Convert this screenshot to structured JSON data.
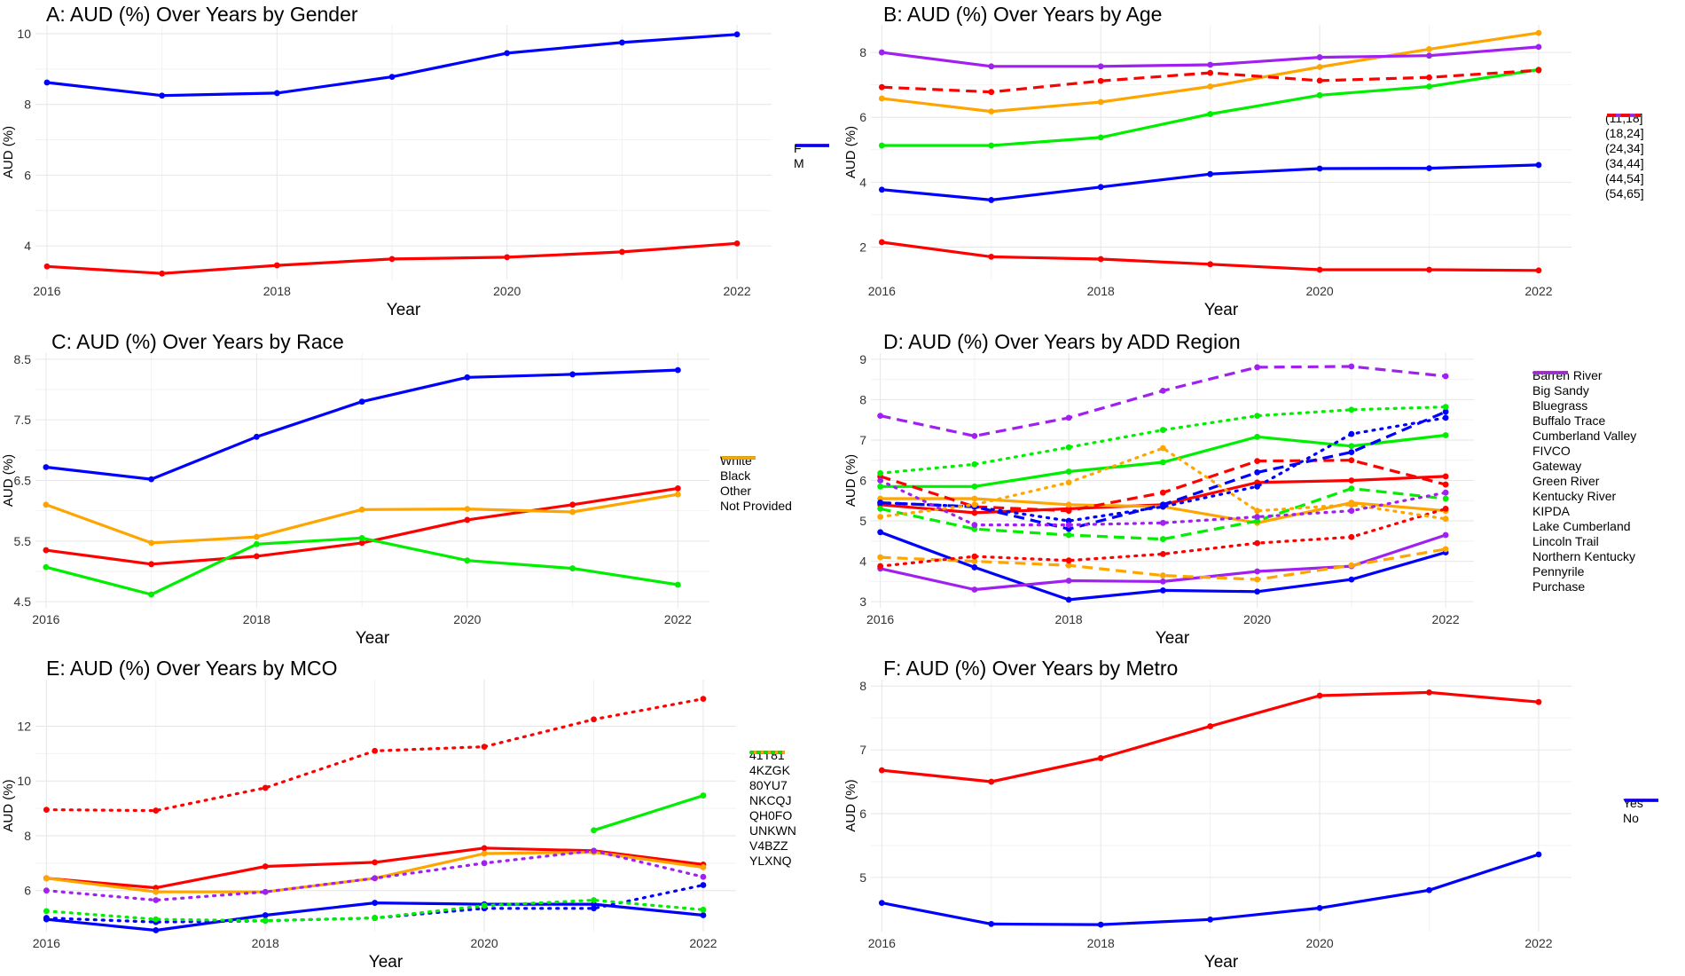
{
  "chart_data": [
    {
      "id": "A",
      "type": "line",
      "title": "A: AUD (%) Over Years by Gender",
      "xlabel": "Year",
      "ylabel": "AUD (%)",
      "xlim": [
        2015.9,
        2022.3
      ],
      "ylim": [
        3.05,
        10.25
      ],
      "xticks": [
        2016,
        2018,
        2020,
        2022
      ],
      "yticks": [
        4,
        6,
        8,
        10
      ],
      "legend_position": "right",
      "grid": true,
      "x": [
        2016,
        2017,
        2018,
        2019,
        2020,
        2021,
        2022
      ],
      "series": [
        {
          "name": "F",
          "color": "#ff0000",
          "dash": "solid",
          "values": [
            3.42,
            3.22,
            3.45,
            3.63,
            3.68,
            3.83,
            4.07
          ]
        },
        {
          "name": "M",
          "color": "#0000ff",
          "dash": "solid",
          "values": [
            8.62,
            8.25,
            8.32,
            8.78,
            9.45,
            9.75,
            9.98
          ]
        }
      ]
    },
    {
      "id": "B",
      "type": "line",
      "title": "B: AUD (%) Over Years by Age",
      "xlabel": "Year",
      "ylabel": "AUD (%)",
      "xlim": [
        2015.9,
        2022.3
      ],
      "ylim": [
        1.0,
        8.85
      ],
      "xticks": [
        2016,
        2018,
        2020,
        2022
      ],
      "yticks": [
        2,
        4,
        6,
        8
      ],
      "legend_position": "right",
      "grid": true,
      "x": [
        2016,
        2017,
        2018,
        2019,
        2020,
        2021,
        2022
      ],
      "series": [
        {
          "name": "(11,18]",
          "color": "#ff0000",
          "dash": "solid",
          "values": [
            2.15,
            1.7,
            1.63,
            1.47,
            1.3,
            1.3,
            1.28
          ]
        },
        {
          "name": "(18,24]",
          "color": "#0000ff",
          "dash": "solid",
          "values": [
            3.77,
            3.45,
            3.85,
            4.25,
            4.42,
            4.43,
            4.53
          ]
        },
        {
          "name": "(24,34]",
          "color": "#00ee00",
          "dash": "solid",
          "values": [
            5.13,
            5.13,
            5.38,
            6.1,
            6.68,
            6.95,
            7.47
          ]
        },
        {
          "name": "(34,44]",
          "color": "#ffa500",
          "dash": "solid",
          "values": [
            6.58,
            6.18,
            6.47,
            6.95,
            7.55,
            8.1,
            8.6
          ]
        },
        {
          "name": "(44,54]",
          "color": "#a020f0",
          "dash": "solid",
          "values": [
            8.0,
            7.57,
            7.57,
            7.62,
            7.85,
            7.9,
            8.17
          ]
        },
        {
          "name": "(54,65]",
          "color": "#ff0000",
          "dash": "dashed",
          "values": [
            6.93,
            6.78,
            7.12,
            7.37,
            7.13,
            7.23,
            7.45
          ]
        }
      ]
    },
    {
      "id": "C",
      "type": "line",
      "title": "C: AUD (%) Over Years by Race",
      "xlabel": "Year",
      "ylabel": "AUD (%)",
      "xlim": [
        2015.9,
        2022.3
      ],
      "ylim": [
        4.4,
        8.6
      ],
      "xticks": [
        2016,
        2018,
        2020,
        2022
      ],
      "yticks": [
        4.5,
        5.5,
        6.5,
        7.5,
        8.5
      ],
      "legend_position": "right",
      "grid": true,
      "x": [
        2016,
        2017,
        2018,
        2019,
        2020,
        2021,
        2022
      ],
      "series": [
        {
          "name": "White",
          "color": "#ff0000",
          "dash": "solid",
          "values": [
            5.35,
            5.12,
            5.25,
            5.47,
            5.85,
            6.1,
            6.37
          ]
        },
        {
          "name": "Black",
          "color": "#0000ff",
          "dash": "solid",
          "values": [
            6.72,
            6.52,
            7.22,
            7.8,
            8.2,
            8.25,
            8.32
          ]
        },
        {
          "name": "Other",
          "color": "#00ee00",
          "dash": "solid",
          "values": [
            5.07,
            4.62,
            5.45,
            5.55,
            5.18,
            5.05,
            4.78
          ]
        },
        {
          "name": "Not Provided",
          "color": "#ffa500",
          "dash": "solid",
          "values": [
            6.1,
            5.47,
            5.57,
            6.02,
            6.03,
            5.98,
            6.27
          ]
        }
      ]
    },
    {
      "id": "D",
      "type": "line",
      "title": "D: AUD (%) Over Years by ADD Region",
      "xlabel": "Year",
      "ylabel": "AUD (%)",
      "xlim": [
        2015.9,
        2022.3
      ],
      "ylim": [
        2.85,
        9.15
      ],
      "xticks": [
        2016,
        2018,
        2020,
        2022
      ],
      "yticks": [
        3,
        4,
        5,
        6,
        7,
        8,
        9
      ],
      "legend_position": "right",
      "grid": true,
      "x": [
        2016,
        2017,
        2018,
        2019,
        2020,
        2021,
        2022
      ],
      "series": [
        {
          "name": "Barren River",
          "color": "#ff0000",
          "dash": "solid",
          "values": [
            5.4,
            5.2,
            5.3,
            5.4,
            5.95,
            6.0,
            6.1
          ]
        },
        {
          "name": "Big Sandy",
          "color": "#0000ff",
          "dash": "solid",
          "values": [
            4.72,
            3.85,
            3.05,
            3.28,
            3.25,
            3.55,
            4.22
          ]
        },
        {
          "name": "Bluegrass",
          "color": "#00ee00",
          "dash": "solid",
          "values": [
            5.85,
            5.85,
            6.22,
            6.45,
            7.08,
            6.85,
            7.12
          ]
        },
        {
          "name": "Buffalo Trace",
          "color": "#ffa500",
          "dash": "solid",
          "values": [
            5.55,
            5.55,
            5.4,
            5.35,
            4.95,
            5.45,
            5.25
          ]
        },
        {
          "name": "Cumberland Valley",
          "color": "#a020f0",
          "dash": "solid",
          "values": [
            3.82,
            3.3,
            3.52,
            3.5,
            3.75,
            3.88,
            4.65
          ]
        },
        {
          "name": "FIVCO",
          "color": "#ff0000",
          "dash": "dashed",
          "values": [
            6.1,
            5.35,
            5.25,
            5.7,
            6.48,
            6.5,
            5.9
          ]
        },
        {
          "name": "Gateway",
          "color": "#0000ff",
          "dash": "dashed",
          "values": [
            5.45,
            5.35,
            4.8,
            5.4,
            6.2,
            6.7,
            7.7
          ]
        },
        {
          "name": "Green River",
          "color": "#00ee00",
          "dash": "dashed",
          "values": [
            5.3,
            4.8,
            4.65,
            4.55,
            5.0,
            5.8,
            5.55
          ]
        },
        {
          "name": "Kentucky River",
          "color": "#ffa500",
          "dash": "dashed",
          "values": [
            4.1,
            4.0,
            3.9,
            3.65,
            3.55,
            3.9,
            4.3
          ]
        },
        {
          "name": "KIPDA",
          "color": "#a020f0",
          "dash": "dashed",
          "values": [
            7.6,
            7.1,
            7.55,
            8.22,
            8.8,
            8.82,
            8.58
          ]
        },
        {
          "name": "Lake Cumberland",
          "color": "#ff0000",
          "dash": "dotted",
          "values": [
            3.88,
            4.12,
            4.02,
            4.18,
            4.45,
            4.6,
            5.3
          ]
        },
        {
          "name": "Lincoln Trail",
          "color": "#0000ff",
          "dash": "dotted",
          "values": [
            5.45,
            5.35,
            5.0,
            5.35,
            5.85,
            7.15,
            7.55
          ]
        },
        {
          "name": "Northern Kentucky",
          "color": "#00ee00",
          "dash": "dotted",
          "values": [
            6.18,
            6.4,
            6.82,
            7.25,
            7.6,
            7.75,
            7.82
          ]
        },
        {
          "name": "Pennyrile",
          "color": "#ffa500",
          "dash": "dotted",
          "values": [
            5.1,
            5.4,
            5.95,
            6.8,
            5.25,
            5.4,
            5.05
          ]
        },
        {
          "name": "Purchase",
          "color": "#a020f0",
          "dash": "dotted",
          "values": [
            6.0,
            4.9,
            4.9,
            4.95,
            5.1,
            5.25,
            5.7
          ]
        }
      ]
    },
    {
      "id": "E",
      "type": "line",
      "title": "E: AUD (%) Over Years by MCO",
      "xlabel": "Year",
      "ylabel": "AUD (%)",
      "xlim": [
        2015.9,
        2022.3
      ],
      "ylim": [
        4.5,
        13.7
      ],
      "xticks": [
        2016,
        2018,
        2020,
        2022
      ],
      "yticks": [
        6,
        8,
        10,
        12
      ],
      "legend_position": "right",
      "grid": true,
      "x": [
        2016,
        2017,
        2018,
        2019,
        2020,
        2021,
        2022
      ],
      "series": [
        {
          "name": "41T81",
          "color": "#ff0000",
          "dash": "solid",
          "values": [
            6.45,
            6.1,
            6.88,
            7.03,
            7.55,
            7.45,
            6.95
          ]
        },
        {
          "name": "4KZGK",
          "color": "#0000ff",
          "dash": "solid",
          "values": [
            4.95,
            4.55,
            5.1,
            5.55,
            5.5,
            5.5,
            5.1
          ]
        },
        {
          "name": "80YU7",
          "color": "#00ee00",
          "dash": "solid",
          "values": [
            null,
            null,
            null,
            null,
            null,
            8.2,
            9.47
          ]
        },
        {
          "name": "NKCQJ",
          "color": "#ffa500",
          "dash": "solid",
          "values": [
            6.45,
            5.95,
            5.95,
            6.45,
            7.35,
            7.4,
            6.85
          ]
        },
        {
          "name": "QH0FO",
          "color": "#a020f0",
          "dash": "dotted",
          "values": [
            6.0,
            5.65,
            5.95,
            6.45,
            7.0,
            7.45,
            6.5
          ]
        },
        {
          "name": "UNKWN",
          "color": "#ff0000",
          "dash": "dotted",
          "values": [
            8.95,
            8.92,
            9.75,
            11.1,
            11.25,
            12.25,
            13.0
          ]
        },
        {
          "name": "V4BZZ",
          "color": "#0000ff",
          "dash": "dotted",
          "values": [
            5.0,
            4.85,
            4.9,
            5.0,
            5.35,
            5.35,
            6.2
          ]
        },
        {
          "name": "YLXNQ",
          "color": "#00ee00",
          "dash": "dotted",
          "values": [
            5.25,
            4.95,
            4.9,
            5.0,
            5.45,
            5.65,
            5.3
          ]
        }
      ]
    },
    {
      "id": "F",
      "type": "line",
      "title": "F: AUD (%) Over Years by Metro",
      "xlabel": "Year",
      "ylabel": "AUD (%)",
      "xlim": [
        2015.9,
        2022.3
      ],
      "ylim": [
        4.15,
        8.1
      ],
      "xticks": [
        2016,
        2018,
        2020,
        2022
      ],
      "yticks": [
        5,
        6,
        7,
        8
      ],
      "legend_position": "right",
      "grid": true,
      "x": [
        2016,
        2017,
        2018,
        2019,
        2020,
        2021,
        2022
      ],
      "series": [
        {
          "name": "Yes",
          "color": "#ff0000",
          "dash": "solid",
          "values": [
            6.68,
            6.5,
            6.87,
            7.37,
            7.85,
            7.9,
            7.75
          ]
        },
        {
          "name": "No",
          "color": "#0000ff",
          "dash": "solid",
          "values": [
            4.6,
            4.27,
            4.26,
            4.34,
            4.52,
            4.8,
            5.36
          ]
        }
      ]
    }
  ]
}
